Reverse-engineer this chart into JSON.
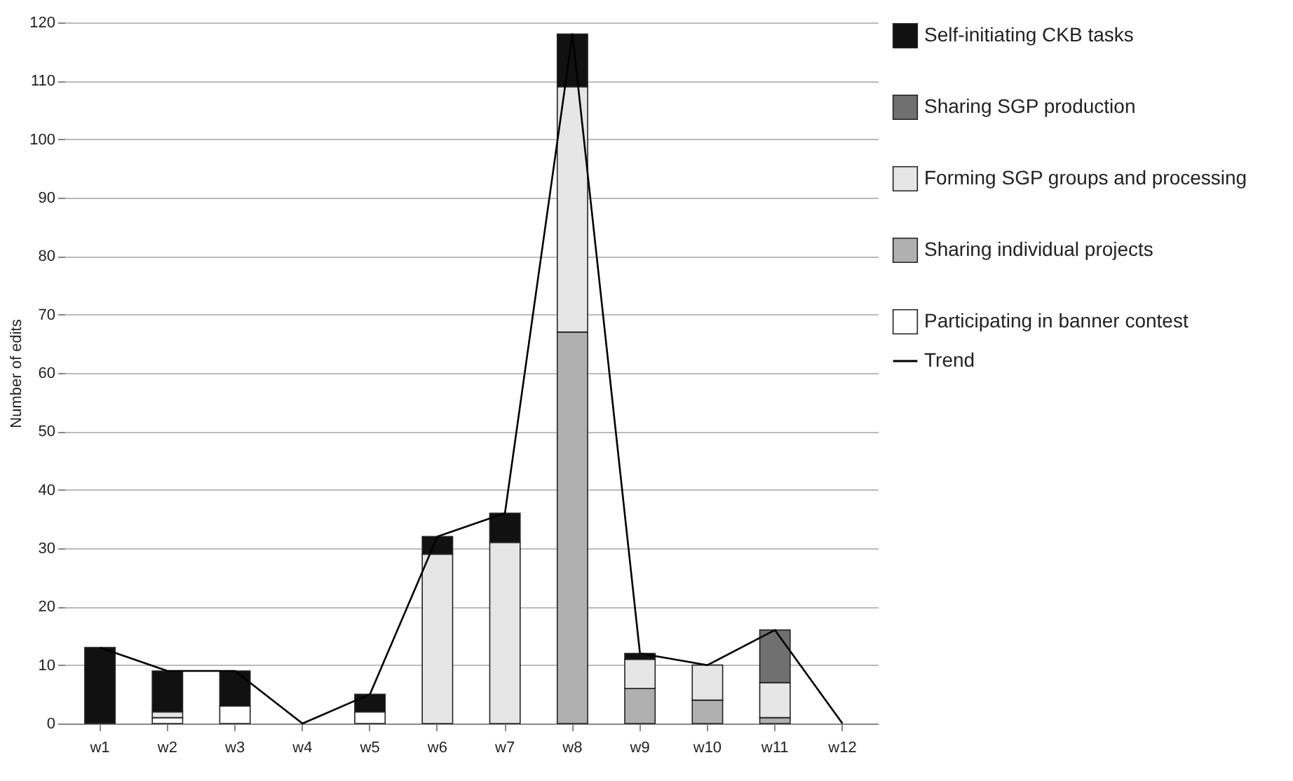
{
  "chart_data": {
    "type": "bar",
    "stacked": true,
    "ylabel": "Number of edits",
    "categories": [
      "w1",
      "w2",
      "w3",
      "w4",
      "w5",
      "w6",
      "w7",
      "w8",
      "w9",
      "w10",
      "w11",
      "w12"
    ],
    "series": [
      {
        "name": "Participating in banner contest",
        "color": "#ffffff",
        "values": [
          0,
          1,
          3,
          0,
          2,
          0,
          0,
          0,
          0,
          0,
          0,
          0
        ]
      },
      {
        "name": "Sharing individual projects",
        "color": "#b0b0b0",
        "values": [
          0,
          0,
          0,
          0,
          0,
          0,
          0,
          67,
          6,
          4,
          1,
          0
        ]
      },
      {
        "name": "Forming SGP groups and processing",
        "color": "#e6e6e6",
        "values": [
          0,
          1,
          0,
          0,
          0,
          29,
          31,
          42,
          5,
          6,
          6,
          0
        ]
      },
      {
        "name": "Sharing SGP production",
        "color": "#707070",
        "values": [
          0,
          0,
          0,
          0,
          0,
          0,
          0,
          0,
          0,
          0,
          9,
          0
        ]
      },
      {
        "name": "Self-initiating CKB tasks",
        "color": "#111111",
        "values": [
          13,
          7,
          6,
          0,
          3,
          3,
          5,
          9,
          1,
          0,
          0,
          0
        ]
      },
      {
        "name": "Trend",
        "type": "line",
        "color": "#000000",
        "values": [
          13,
          9,
          9,
          0,
          5,
          32,
          36,
          118,
          12,
          10,
          16,
          0
        ]
      }
    ],
    "ylim": [
      0,
      120
    ],
    "yticks": [
      0,
      10,
      20,
      30,
      40,
      50,
      60,
      70,
      80,
      90,
      100,
      110,
      120
    ],
    "grid": "y",
    "legend": "right"
  }
}
